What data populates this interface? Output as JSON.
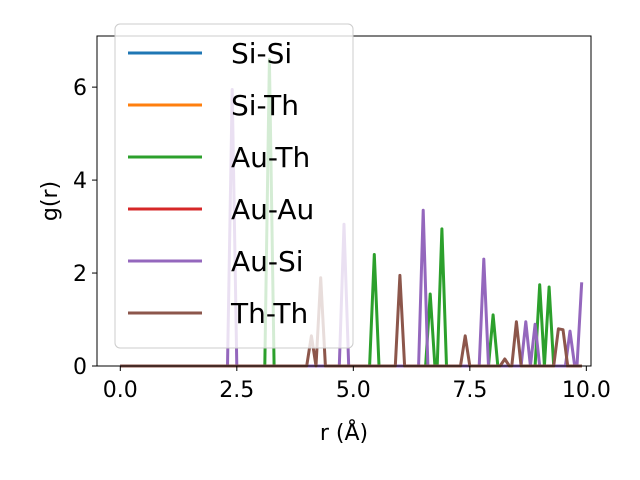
{
  "chart_data": {
    "type": "line",
    "title": "",
    "xlabel": "r (Å)",
    "ylabel": "g(r)",
    "xlim": [
      -0.5,
      10.1
    ],
    "ylim": [
      0,
      7.1
    ],
    "xticks": [
      0.0,
      2.5,
      5.0,
      7.5,
      10.0
    ],
    "xtick_labels": [
      "0.0",
      "2.5",
      "5.0",
      "7.5",
      "10.0"
    ],
    "yticks": [
      0,
      2,
      4,
      6
    ],
    "ytick_labels": [
      "0",
      "2",
      "4",
      "6"
    ],
    "grid": false,
    "legend_position": "upper-left",
    "series": [
      {
        "name": "Si-Si",
        "color": "#1f77b4",
        "points": [
          [
            0,
            0
          ],
          [
            9.9,
            0
          ]
        ]
      },
      {
        "name": "Si-Th",
        "color": "#ff7f0e",
        "points": [
          [
            0,
            0
          ],
          [
            9.9,
            0
          ]
        ]
      },
      {
        "name": "Au-Th",
        "color": "#2ca02c",
        "points": [
          [
            0,
            0
          ],
          [
            3.1,
            0
          ],
          [
            3.2,
            6.6
          ],
          [
            3.3,
            0
          ],
          [
            5.35,
            0
          ],
          [
            5.45,
            2.4
          ],
          [
            5.55,
            0
          ],
          [
            6.55,
            0
          ],
          [
            6.65,
            1.55
          ],
          [
            6.75,
            0
          ],
          [
            6.8,
            0
          ],
          [
            6.9,
            2.95
          ],
          [
            7.0,
            0
          ],
          [
            7.9,
            0
          ],
          [
            8.0,
            1.1
          ],
          [
            8.1,
            0
          ],
          [
            8.9,
            0
          ],
          [
            9.0,
            1.75
          ],
          [
            9.1,
            0
          ],
          [
            9.1,
            0
          ],
          [
            9.2,
            1.7
          ],
          [
            9.3,
            0
          ],
          [
            9.9,
            0
          ]
        ]
      },
      {
        "name": "Au-Au",
        "color": "#d62728",
        "points": [
          [
            0,
            0
          ],
          [
            9.9,
            0
          ]
        ]
      },
      {
        "name": "Au-Si",
        "color": "#9467bd",
        "points": [
          [
            0,
            0
          ],
          [
            2.3,
            0
          ],
          [
            2.4,
            5.95
          ],
          [
            2.5,
            0
          ],
          [
            4.7,
            0
          ],
          [
            4.8,
            3.05
          ],
          [
            4.9,
            0
          ],
          [
            6.4,
            0
          ],
          [
            6.5,
            3.35
          ],
          [
            6.6,
            0
          ],
          [
            7.7,
            0
          ],
          [
            7.8,
            2.3
          ],
          [
            7.9,
            0
          ],
          [
            8.6,
            0
          ],
          [
            8.7,
            0.95
          ],
          [
            8.8,
            0
          ],
          [
            8.8,
            0
          ],
          [
            8.9,
            0.9
          ],
          [
            9.0,
            0
          ],
          [
            9.55,
            0
          ],
          [
            9.65,
            0.75
          ],
          [
            9.75,
            0
          ],
          [
            9.8,
            0
          ],
          [
            9.9,
            1.8
          ]
        ]
      },
      {
        "name": "Th-Th",
        "color": "#8c564b",
        "points": [
          [
            0,
            0
          ],
          [
            4.0,
            0
          ],
          [
            4.1,
            0.65
          ],
          [
            4.2,
            0
          ],
          [
            4.2,
            0
          ],
          [
            4.3,
            1.9
          ],
          [
            4.4,
            0
          ],
          [
            5.9,
            0
          ],
          [
            6.0,
            1.95
          ],
          [
            6.1,
            0
          ],
          [
            7.3,
            0
          ],
          [
            7.4,
            0.65
          ],
          [
            7.5,
            0
          ],
          [
            8.15,
            0
          ],
          [
            8.25,
            0.15
          ],
          [
            8.35,
            0
          ],
          [
            8.4,
            0
          ],
          [
            8.5,
            0.95
          ],
          [
            8.6,
            0
          ],
          [
            9.3,
            0
          ],
          [
            9.4,
            0.8
          ],
          [
            9.5,
            0.78
          ],
          [
            9.6,
            0
          ],
          [
            9.9,
            0
          ]
        ]
      }
    ]
  }
}
